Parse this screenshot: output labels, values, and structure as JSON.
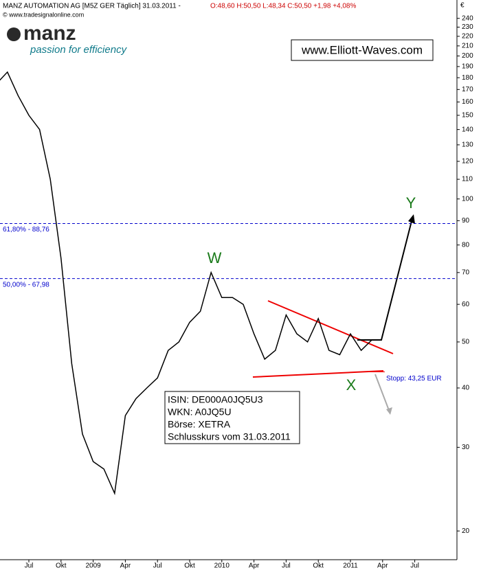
{
  "title": "MANZ AUTOMATION AG [M5Z GER  Täglich] 31.03.2011 - ",
  "quote": "O:48,60 H:50,50 L:48,34 C:50,50 +1,98 +4,08%",
  "source": "© www.tradesignalonline.com",
  "logo": "manz",
  "slogan": "passion for efficiency",
  "website": "www.Elliott-Waves.com",
  "info": [
    "ISIN: DE000A0JQ5U3",
    "WKN: A0JQ5U",
    "Börse: XETRA",
    "Schlusskurs vom 31.03.2011"
  ],
  "chart_data": {
    "type": "line",
    "unit": "€",
    "log_scale": true,
    "color": "#000000",
    "categories": [
      null,
      null,
      null,
      "Jul",
      null,
      null,
      "Okt",
      null,
      null,
      "2009",
      null,
      null,
      "Apr",
      null,
      null,
      "Jul",
      null,
      null,
      "Okt",
      null,
      null,
      "2010",
      null,
      null,
      "Apr",
      null,
      null,
      "Jul",
      null,
      null,
      "Okt",
      null,
      null,
      "2011",
      null,
      null,
      "Apr",
      null,
      null,
      "Jul"
    ],
    "series": [
      {
        "name": "MANZ AUTOMATION AG",
        "color": "#000000",
        "values": [
          175,
          185,
          165,
          150,
          140,
          110,
          75,
          45,
          32,
          28,
          27,
          24,
          35,
          38,
          40,
          42,
          48,
          50,
          55,
          58,
          70,
          62,
          62,
          60,
          52,
          46,
          48,
          57,
          52,
          50,
          56,
          48,
          47,
          52,
          48,
          50.5,
          null,
          null,
          null,
          null
        ]
      }
    ],
    "ylim": [
      17.4,
      258
    ],
    "yticks": [
      20,
      30,
      40,
      50,
      60,
      70,
      80,
      90,
      100,
      110,
      120,
      130,
      140,
      150,
      160,
      170,
      180,
      190,
      200,
      210,
      220,
      230,
      240
    ],
    "hlines": [
      {
        "value": 88.76,
        "label": "61,80% - 88,76"
      },
      {
        "value": 67.98,
        "label": "50,00% - 67,98"
      }
    ],
    "stop": {
      "value": 43.25,
      "label": "Stopp: 43,25 EUR"
    },
    "wave_labels": [
      "W",
      "X",
      "Y"
    ]
  }
}
